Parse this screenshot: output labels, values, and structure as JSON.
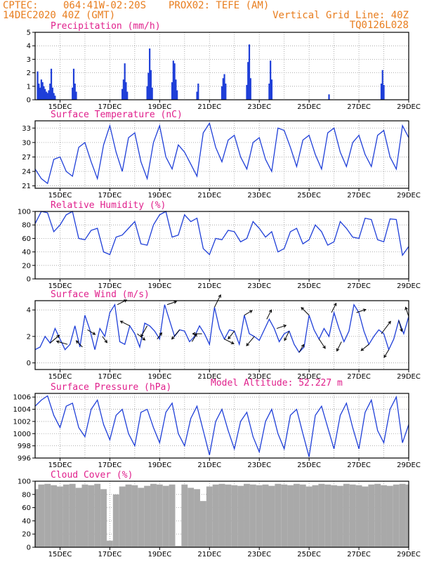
{
  "header": {
    "source": "CPTEC:",
    "coords": "064:41W-02:20S",
    "point": "PROX02: TEFE (AM)",
    "datetime": "14DEC2020 40Z (GMT)",
    "grid_note": "Vertical Grid Line: 40Z",
    "code": "TQ0126L028"
  },
  "model_altitude": "Model Altitude: 52.227 m",
  "colors": {
    "header": "#e87d1e",
    "title": "#e0208c",
    "series": "#1f3fd8",
    "cloud": "#a9a9a9",
    "arrow": "#000000"
  },
  "chart_data": [
    {
      "type": "bar",
      "title": "Precipitation (mm/h)",
      "ylim": [
        0,
        5
      ],
      "yticks": [
        "0",
        "1",
        "2",
        "3",
        "4",
        "5"
      ],
      "xticks": [
        "15DEC",
        "17DEC",
        "19DEC",
        "21DEC",
        "23DEC",
        "25DEC",
        "27DEC",
        "29DEC"
      ],
      "x_unit": "day offset from 14DEC 00Z",
      "x": [
        0.1,
        0.15,
        0.2,
        0.25,
        0.3,
        0.35,
        0.4,
        0.45,
        0.5,
        0.55,
        0.6,
        0.65,
        0.7,
        0.75,
        0.8,
        1.5,
        1.55,
        1.6,
        1.65,
        3.5,
        3.55,
        3.6,
        3.65,
        3.7,
        4.5,
        4.55,
        4.6,
        4.65,
        4.7,
        5.5,
        5.55,
        5.6,
        5.65,
        5.7,
        6.5,
        6.55,
        7.5,
        7.55,
        7.6,
        7.65,
        8.5,
        8.55,
        8.6,
        8.65,
        9.4,
        9.45,
        9.5,
        11.8,
        13.9,
        13.95,
        14.0
      ],
      "values": [
        2.1,
        1.2,
        0.9,
        1.5,
        1.3,
        1.0,
        0.8,
        0.6,
        0.5,
        0.7,
        1.2,
        2.3,
        0.9,
        0.5,
        0.3,
        0.9,
        2.3,
        1.2,
        0.6,
        0.8,
        1.5,
        2.7,
        1.3,
        0.6,
        1.0,
        2.0,
        3.8,
        2.2,
        0.9,
        1.3,
        2.9,
        2.7,
        1.5,
        0.7,
        0.6,
        1.2,
        1.0,
        1.6,
        1.9,
        1.2,
        1.1,
        2.8,
        4.1,
        1.6,
        1.2,
        2.9,
        1.5,
        0.4,
        1.2,
        2.2,
        1.1
      ]
    },
    {
      "type": "line",
      "title": "Surface Temperature (nC)",
      "ylim": [
        20.5,
        34.5
      ],
      "yticks": [
        "21",
        "24",
        "27",
        "30",
        "33"
      ],
      "xticks": [
        "15DEC",
        "17DEC",
        "19DEC",
        "21DEC",
        "23DEC",
        "25DEC",
        "27DEC",
        "29DEC"
      ],
      "x": [
        0,
        0.25,
        0.5,
        0.75,
        1.0,
        1.25,
        1.5,
        1.75,
        2.0,
        2.25,
        2.5,
        2.75,
        3.0,
        3.25,
        3.5,
        3.75,
        4.0,
        4.25,
        4.5,
        4.75,
        5.0,
        5.25,
        5.5,
        5.75,
        6.0,
        6.25,
        6.5,
        6.75,
        7.0,
        7.25,
        7.5,
        7.75,
        8.0,
        8.25,
        8.5,
        8.75,
        9.0,
        9.25,
        9.5,
        9.75,
        10.0,
        10.25,
        10.5,
        10.75,
        11.0,
        11.25,
        11.5,
        11.75,
        12.0,
        12.25,
        12.5,
        12.75,
        13.0,
        13.25,
        13.5,
        13.75,
        14.0,
        14.25,
        14.5,
        14.75,
        15.0
      ],
      "values": [
        24.5,
        22.5,
        21.5,
        26.5,
        27.0,
        24.0,
        23.0,
        29.0,
        30.0,
        26.0,
        22.5,
        29.5,
        33.5,
        28.0,
        24.0,
        31.0,
        32.0,
        26.0,
        22.5,
        30.0,
        33.5,
        27.0,
        24.5,
        29.5,
        28.0,
        25.5,
        23.0,
        32.0,
        34.0,
        29.0,
        26.0,
        30.5,
        31.5,
        27.0,
        24.5,
        30.0,
        31.0,
        26.5,
        24.0,
        33.0,
        32.5,
        29.0,
        25.0,
        30.5,
        31.5,
        27.5,
        24.5,
        32.0,
        33.0,
        28.0,
        25.0,
        30.0,
        31.5,
        27.5,
        25.0,
        31.5,
        32.5,
        27.0,
        24.5,
        33.5,
        31.0
      ]
    },
    {
      "type": "line",
      "title": "Relative Humidity (%)",
      "ylim": [
        0,
        100
      ],
      "yticks": [
        "0",
        "20",
        "40",
        "60",
        "80",
        "100"
      ],
      "xticks": [
        "15DEC",
        "17DEC",
        "19DEC",
        "21DEC",
        "23DEC",
        "25DEC",
        "27DEC",
        "29DEC"
      ],
      "x": [
        0,
        0.25,
        0.5,
        0.75,
        1.0,
        1.25,
        1.5,
        1.75,
        2.0,
        2.25,
        2.5,
        2.75,
        3.0,
        3.25,
        3.5,
        3.75,
        4.0,
        4.25,
        4.5,
        4.75,
        5.0,
        5.25,
        5.5,
        5.75,
        6.0,
        6.25,
        6.5,
        6.75,
        7.0,
        7.25,
        7.5,
        7.75,
        8.0,
        8.25,
        8.5,
        8.75,
        9.0,
        9.25,
        9.5,
        9.75,
        10.0,
        10.25,
        10.5,
        10.75,
        11.0,
        11.25,
        11.5,
        11.75,
        12.0,
        12.25,
        12.5,
        12.75,
        13.0,
        13.25,
        13.5,
        13.75,
        14.0,
        14.25,
        14.5,
        14.75,
        15.0
      ],
      "values": [
        82,
        100,
        98,
        70,
        80,
        95,
        100,
        60,
        58,
        72,
        75,
        40,
        36,
        62,
        65,
        75,
        85,
        52,
        50,
        80,
        95,
        100,
        62,
        65,
        95,
        85,
        90,
        45,
        36,
        60,
        58,
        72,
        70,
        55,
        60,
        85,
        75,
        62,
        70,
        40,
        45,
        70,
        75,
        52,
        58,
        80,
        70,
        50,
        55,
        85,
        75,
        62,
        60,
        90,
        88,
        58,
        55,
        89,
        88,
        35,
        48
      ]
    },
    {
      "type": "line",
      "title": "Surface Wind (m/s)",
      "ylim": [
        -0.5,
        4.7
      ],
      "yticks": [
        "0",
        "2",
        "4"
      ],
      "xticks": [
        "15DEC",
        "17DEC",
        "19DEC",
        "21DEC",
        "23DEC",
        "25DEC",
        "27DEC",
        "29DEC"
      ],
      "x": [
        0,
        0.2,
        0.4,
        0.6,
        0.8,
        1.0,
        1.2,
        1.4,
        1.6,
        1.8,
        2.0,
        2.2,
        2.4,
        2.6,
        2.8,
        3.0,
        3.2,
        3.4,
        3.6,
        3.8,
        4.0,
        4.2,
        4.4,
        4.6,
        4.8,
        5.0,
        5.2,
        5.4,
        5.6,
        5.8,
        6.0,
        6.2,
        6.4,
        6.6,
        6.8,
        7.0,
        7.2,
        7.4,
        7.6,
        7.8,
        8.0,
        8.2,
        8.4,
        8.6,
        8.8,
        9.0,
        9.2,
        9.4,
        9.6,
        9.8,
        10.0,
        10.2,
        10.4,
        10.6,
        10.8,
        11.0,
        11.2,
        11.4,
        11.6,
        11.8,
        12.0,
        12.2,
        12.4,
        12.6,
        12.8,
        13.0,
        13.2,
        13.4,
        13.6,
        13.8,
        14.0,
        14.2,
        14.4,
        14.6,
        14.8,
        15.0
      ],
      "values": [
        1.0,
        1.2,
        2.0,
        1.5,
        2.6,
        1.8,
        1.0,
        1.4,
        2.8,
        1.2,
        3.6,
        2.5,
        1.0,
        2.6,
        2.0,
        3.8,
        4.4,
        1.6,
        1.4,
        2.8,
        2.2,
        1.2,
        3.0,
        2.8,
        2.4,
        1.8,
        4.4,
        3.2,
        2.0,
        2.5,
        2.4,
        1.6,
        2.0,
        2.8,
        2.2,
        1.4,
        4.2,
        2.6,
        1.8,
        2.5,
        2.4,
        1.4,
        3.6,
        2.2,
        2.0,
        1.7,
        2.5,
        3.3,
        2.6,
        1.6,
        2.2,
        2.4,
        1.4,
        0.8,
        1.2,
        3.6,
        2.5,
        1.8,
        2.6,
        2.0,
        3.8,
        2.6,
        1.6,
        2.4,
        4.4,
        3.8,
        2.4,
        1.4,
        2.0,
        2.5,
        2.2,
        1.0,
        1.8,
        3.2,
        2.2,
        3.5
      ],
      "arrows": {
        "x": [
          0.6,
          1.3,
          1.9,
          2.1,
          2.7,
          3.3,
          3.8,
          4.1,
          4.5,
          4.9,
          5.3,
          5.8,
          6.3,
          6.7,
          7.2,
          7.6,
          8.0,
          8.4,
          8.8,
          9.3,
          9.7,
          10.2,
          10.6,
          11.0,
          11.4,
          11.9,
          12.3,
          12.9,
          13.4,
          13.9,
          14.2,
          14.6,
          15.0
        ],
        "u": [
          0.6,
          -0.7,
          -0.4,
          0.5,
          0.3,
          0.6,
          -0.6,
          0.5,
          -0.4,
          0.3,
          0.6,
          -0.5,
          0.3,
          -0.6,
          0.4,
          0.6,
          -0.4,
          0.5,
          -0.5,
          0.3,
          0.6,
          -0.3,
          0.3,
          -0.5,
          0.4,
          0.3,
          -0.3,
          0.6,
          -0.5,
          0.6,
          -0.3,
          0.2,
          -0.2
        ],
        "v": [
          0.5,
          0.2,
          0.4,
          -0.3,
          -0.4,
          0.3,
          0.3,
          -0.4,
          -0.7,
          0.4,
          0.2,
          -0.6,
          0.5,
          0.0,
          0.8,
          -0.3,
          -0.5,
          0.3,
          -0.6,
          0.6,
          0.2,
          -0.6,
          0.5,
          0.5,
          -0.6,
          0.6,
          -0.6,
          0.2,
          -0.4,
          0.8,
          -0.5,
          -0.7,
          0.6
        ]
      }
    },
    {
      "type": "line",
      "title": "Surface Pressure (hPa)",
      "ylim": [
        996,
        1006.6
      ],
      "yticks": [
        "996",
        "998",
        "1000",
        "1002",
        "1004",
        "1006"
      ],
      "xticks": [
        "15DEC",
        "17DEC",
        "19DEC",
        "21DEC",
        "23DEC",
        "25DEC",
        "27DEC",
        "29DEC"
      ],
      "x": [
        0,
        0.25,
        0.5,
        0.75,
        1.0,
        1.25,
        1.5,
        1.75,
        2.0,
        2.25,
        2.5,
        2.75,
        3.0,
        3.25,
        3.5,
        3.75,
        4.0,
        4.25,
        4.5,
        4.75,
        5.0,
        5.25,
        5.5,
        5.75,
        6.0,
        6.25,
        6.5,
        6.75,
        7.0,
        7.25,
        7.5,
        7.75,
        8.0,
        8.25,
        8.5,
        8.75,
        9.0,
        9.25,
        9.5,
        9.75,
        10.0,
        10.25,
        10.5,
        10.75,
        11.0,
        11.25,
        11.5,
        11.75,
        12.0,
        12.25,
        12.5,
        12.75,
        13.0,
        13.25,
        13.5,
        13.75,
        14.0,
        14.25,
        14.5,
        14.75,
        15.0
      ],
      "values": [
        1004.5,
        1005.5,
        1006.2,
        1003.0,
        1001.0,
        1004.5,
        1005.0,
        1001.0,
        999.5,
        1004.0,
        1005.5,
        1001.5,
        999.0,
        1003.0,
        1004.0,
        1000.0,
        998.0,
        1003.5,
        1004.0,
        1001.0,
        998.5,
        1003.5,
        1005.0,
        1000.0,
        998.0,
        1002.5,
        1004.5,
        1000.5,
        996.5,
        1002.0,
        1004.0,
        1000.5,
        997.5,
        1002.0,
        1003.5,
        999.5,
        997.0,
        1002.0,
        1004.0,
        1000.0,
        997.5,
        1003.0,
        1004.0,
        1000.0,
        996.2,
        1003.0,
        1004.5,
        1001.0,
        997.5,
        1003.0,
        1005.0,
        1001.0,
        997.5,
        1003.5,
        1005.5,
        1000.5,
        998.5,
        1004.0,
        1006.0,
        998.5,
        1001.5
      ]
    },
    {
      "type": "area",
      "title": "Cloud Cover (%)",
      "ylim": [
        0,
        100
      ],
      "yticks": [
        "0",
        "20",
        "40",
        "60",
        "80",
        "100"
      ],
      "xticks": [
        "15DEC",
        "17DEC",
        "19DEC",
        "21DEC",
        "23DEC",
        "25DEC",
        "27DEC",
        "29DEC"
      ],
      "x": [
        0,
        0.25,
        0.5,
        0.75,
        1.0,
        1.25,
        1.5,
        1.75,
        2.0,
        2.25,
        2.5,
        2.75,
        3.0,
        3.25,
        3.5,
        3.75,
        4.0,
        4.25,
        4.5,
        4.75,
        5.0,
        5.25,
        5.5,
        5.75,
        6.0,
        6.25,
        6.5,
        6.75,
        7.0,
        7.25,
        7.5,
        7.75,
        8.0,
        8.25,
        8.5,
        8.75,
        9.0,
        9.25,
        9.5,
        9.75,
        10.0,
        10.25,
        10.5,
        10.75,
        11.0,
        11.25,
        11.5,
        11.75,
        12.0,
        12.25,
        12.5,
        12.75,
        13.0,
        13.25,
        13.5,
        13.75,
        14.0,
        14.25,
        14.5,
        14.75,
        15.0
      ],
      "values": [
        88,
        95,
        96,
        94,
        92,
        95,
        96,
        90,
        95,
        94,
        96,
        88,
        10,
        80,
        92,
        95,
        94,
        90,
        93,
        96,
        95,
        93,
        95,
        2,
        95,
        90,
        88,
        70,
        92,
        95,
        96,
        95,
        94,
        93,
        96,
        95,
        94,
        95,
        93,
        96,
        95,
        94,
        96,
        95,
        92,
        94,
        96,
        95,
        94,
        93,
        96,
        95,
        94,
        92,
        95,
        96,
        94,
        93,
        95,
        96,
        95
      ]
    }
  ]
}
